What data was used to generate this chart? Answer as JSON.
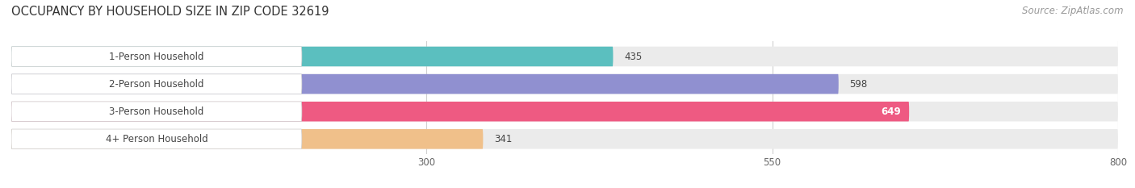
{
  "title": "OCCUPANCY BY HOUSEHOLD SIZE IN ZIP CODE 32619",
  "source": "Source: ZipAtlas.com",
  "categories": [
    "1-Person Household",
    "2-Person Household",
    "3-Person Household",
    "4+ Person Household"
  ],
  "values": [
    435,
    598,
    649,
    341
  ],
  "bar_colors": [
    "#5BBFBF",
    "#9090D0",
    "#EE5A82",
    "#F0C08A"
  ],
  "bar_bg_color": "#EBEBEB",
  "label_bg_color": "#FFFFFF",
  "label_colors": [
    "#444444",
    "#444444",
    "#444444",
    "#444444"
  ],
  "value_colors": [
    "#444444",
    "#444444",
    "#ffffff",
    "#444444"
  ],
  "xlim": [
    0,
    800
  ],
  "xmin": 0,
  "xmax": 800,
  "xticks": [
    300,
    550,
    800
  ],
  "title_fontsize": 10.5,
  "source_fontsize": 8.5,
  "bar_label_fontsize": 8.5,
  "value_fontsize": 8.5,
  "background_color": "#ffffff",
  "grid_color": "#d0d0d0"
}
